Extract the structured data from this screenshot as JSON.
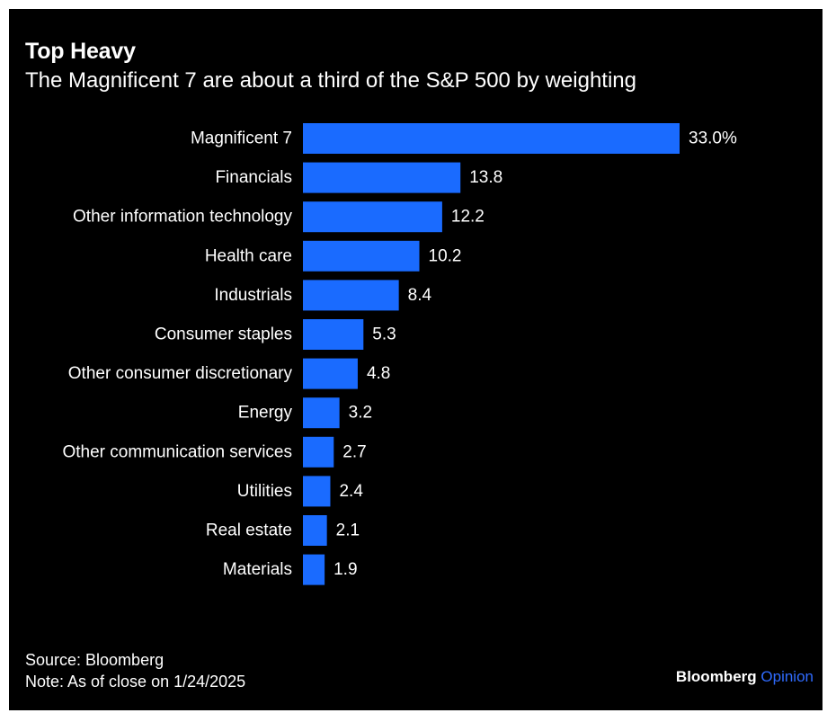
{
  "header": {
    "title": "Top Heavy",
    "subtitle": "The Magnificent 7 are about a third of the S&P 500 by weighting"
  },
  "chart_data": {
    "type": "bar",
    "orientation": "horizontal",
    "title": "Top Heavy",
    "subtitle": "The Magnificent 7 are about a third of the S&P 500 by weighting",
    "categories": [
      "Magnificent 7",
      "Financials",
      "Other information technology",
      "Health care",
      "Industrials",
      "Consumer staples",
      "Other consumer discretionary",
      "Energy",
      "Other communication services",
      "Utilities",
      "Real estate",
      "Materials"
    ],
    "values": [
      33.0,
      13.8,
      12.2,
      10.2,
      8.4,
      5.3,
      4.8,
      3.2,
      2.7,
      2.4,
      2.1,
      1.9
    ],
    "value_labels": [
      "33.0%",
      "13.8",
      "12.2",
      "10.2",
      "8.4",
      "5.3",
      "4.8",
      "3.2",
      "2.7",
      "2.4",
      "2.1",
      "1.9"
    ],
    "unit": "%",
    "bar_color": "#1a6bff",
    "background_color": "#000000",
    "grid": false,
    "legend": "none",
    "xlim": [
      0,
      33.0
    ]
  },
  "footer": {
    "source": "Source: Bloomberg",
    "note": "Note: As of close on 1/24/2025"
  },
  "brand": {
    "main": "Bloomberg",
    "accent": "Opinion",
    "accent_color": "#2f6bff"
  }
}
